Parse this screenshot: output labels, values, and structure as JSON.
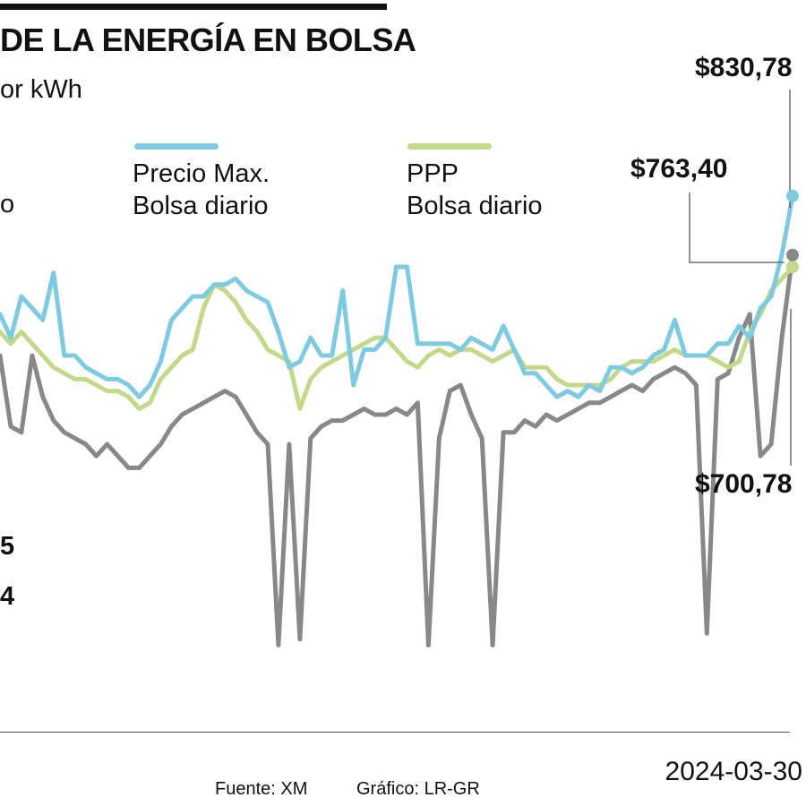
{
  "header": {
    "title": "DE LA ENERGÍA EN BOLSA",
    "subtitle": "or kWh"
  },
  "legend": [
    {
      "line1": "Precio Max.",
      "line2": "Bolsa diario",
      "color": "#7ecae1"
    },
    {
      "line1": "PPP",
      "line2": "Bolsa diario",
      "color": "#c2d98a"
    }
  ],
  "left_cut": {
    "legend_fragment": "o",
    "value_a": "5",
    "value_b": "4"
  },
  "labels": {
    "max_last": "$830,78",
    "ppp_last": "$763,40",
    "min_last": "$700,78"
  },
  "footer": {
    "source": "Fuente: XM",
    "graphic": "Gráfico: LR-GR",
    "date": "2024-03-30"
  },
  "chart_data": {
    "type": "line",
    "x_count": 75,
    "xlabel": "",
    "ylabel": "",
    "ylim": [
      0,
      100
    ],
    "grid": false,
    "series": [
      {
        "color": "#7ecae1",
        "values": [
          62,
          58,
          65,
          63,
          61,
          69,
          55,
          55,
          53,
          52,
          51,
          51,
          50,
          48,
          50,
          54,
          61,
          63,
          65,
          65,
          67,
          67,
          68,
          66,
          65,
          64,
          59,
          53,
          54,
          58,
          55,
          55,
          66,
          50,
          56,
          56,
          58,
          70,
          70,
          57,
          57,
          57,
          57,
          56,
          58,
          57,
          56,
          60,
          56,
          52,
          52,
          50,
          48,
          49,
          48,
          50,
          49,
          53,
          53,
          52,
          53,
          55,
          56,
          61,
          55,
          55,
          55,
          57,
          57,
          60,
          58,
          63,
          65,
          72,
          82
        ]
      },
      {
        "name": "PPP Bolsa diario",
        "color": "#c2d98a",
        "values": [
          59,
          57,
          59,
          57,
          55,
          53,
          52,
          51,
          51,
          50,
          49,
          49,
          48,
          46,
          47,
          51,
          53,
          55,
          56,
          63,
          67,
          66,
          64,
          61,
          59,
          56,
          55,
          54,
          46,
          51,
          53,
          54,
          55,
          56,
          57,
          58,
          58,
          56,
          54,
          53,
          55,
          56,
          55,
          56,
          56,
          55,
          54,
          55,
          56,
          53,
          53,
          53,
          51,
          50,
          50,
          50,
          50,
          51,
          53,
          54,
          54,
          54,
          55,
          56,
          55,
          55,
          55,
          54,
          53,
          54,
          59,
          62,
          66,
          68,
          70
        ]
      },
      {
        "color": "#888888",
        "values": [
          55,
          43,
          42,
          55,
          48,
          44,
          42,
          41,
          40,
          38,
          40,
          38,
          36,
          36,
          38,
          40,
          43,
          45,
          46,
          47,
          48,
          49,
          48,
          45,
          42,
          40,
          6,
          40,
          7,
          41,
          43,
          44,
          44,
          45,
          46,
          45,
          45,
          46,
          45,
          47,
          6,
          41,
          49,
          50,
          45,
          41,
          6,
          42,
          42,
          44,
          43,
          45,
          44,
          45,
          46,
          47,
          47,
          48,
          49,
          50,
          49,
          51,
          52,
          53,
          52,
          50,
          8,
          51,
          52,
          58,
          62,
          38,
          40,
          58,
          72
        ]
      }
    ]
  }
}
